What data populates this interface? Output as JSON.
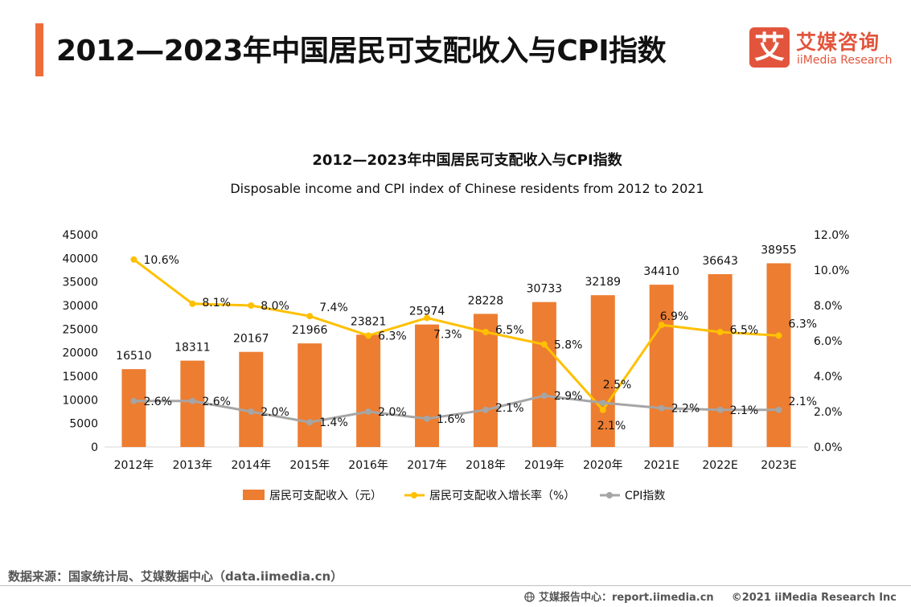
{
  "page": {
    "title": "2012—2023年中国居民可支配收入与CPI指数",
    "logo_cn": "艾媒咨询",
    "logo_en": "iiMedia Research",
    "logo_mark": "艾",
    "source": "数据来源：国家统计局、艾媒数据中心（data.iimedia.cn）",
    "footer_site": "艾媒报告中心：report.iimedia.cn",
    "copyright": "©2021  iiMedia Research  Inc"
  },
  "colors": {
    "accent": "#ed6d3a",
    "logo": "#e2553c",
    "bar": "#ed7d31",
    "growth": "#ffc000",
    "cpi": "#a5a5a5"
  },
  "chart_data": {
    "type": "bar",
    "title": "2012—2023年中国居民可支配收入与CPI指数",
    "subtitle": "Disposable income and CPI index of Chinese residents from 2012 to 2021",
    "categories": [
      "2012年",
      "2013年",
      "2014年",
      "2015年",
      "2016年",
      "2017年",
      "2018年",
      "2019年",
      "2020年",
      "2021E",
      "2022E",
      "2023E"
    ],
    "y_left": {
      "min": 0,
      "max": 45000,
      "ticks": [
        "0",
        "5000",
        "10000",
        "15000",
        "20000",
        "25000",
        "30000",
        "35000",
        "40000",
        "45000"
      ]
    },
    "y_right": {
      "min": 0,
      "max": 12,
      "ticks": [
        "0.0%",
        "2.0%",
        "4.0%",
        "6.0%",
        "8.0%",
        "10.0%",
        "12.0%"
      ]
    },
    "series": [
      {
        "name": "居民可支配收入（元）",
        "type": "bar",
        "axis": "left",
        "values": [
          16510,
          18311,
          20167,
          21966,
          23821,
          25974,
          28228,
          30733,
          32189,
          34410,
          36643,
          38955
        ],
        "labels": [
          "16510",
          "18311",
          "20167",
          "21966",
          "23821",
          "25974",
          "28228",
          "30733",
          "32189",
          "34410",
          "36643",
          "38955"
        ]
      },
      {
        "name": "居民可支配收入增长率（%）",
        "type": "line",
        "axis": "right",
        "values": [
          10.6,
          8.1,
          8.0,
          7.4,
          6.3,
          7.3,
          6.5,
          5.8,
          2.1,
          6.9,
          6.5,
          6.3
        ],
        "labels": [
          "10.6%",
          "8.1%",
          "8.0%",
          "7.4%",
          "6.3%",
          "7.3%",
          "6.5%",
          "5.8%",
          "2.1%",
          "6.9%",
          "6.5%",
          "6.3%"
        ]
      },
      {
        "name": "CPI指数",
        "type": "line",
        "axis": "right",
        "values": [
          2.6,
          2.6,
          2.0,
          1.4,
          2.0,
          1.6,
          2.1,
          2.9,
          2.5,
          2.2,
          2.1,
          2.1
        ],
        "labels": [
          "2.6%",
          "2.6%",
          "2.0%",
          "1.4%",
          "2.0%",
          "1.6%",
          "2.1%",
          "2.9%",
          "2.5%",
          "2.2%",
          "2.1%",
          "2.1%"
        ]
      }
    ],
    "legend_position": "bottom"
  }
}
